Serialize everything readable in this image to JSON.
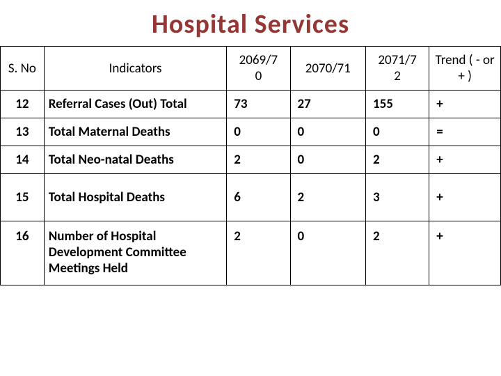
{
  "title": "Hospital Services",
  "table": {
    "columns": [
      "S. No",
      "Indicators",
      "2069/70",
      "2070/71",
      "2071/72",
      "Trend ( - or + )"
    ],
    "col_y1_lines": [
      "2069/7",
      "0"
    ],
    "col_y3_lines": [
      "2071/7",
      "2"
    ],
    "rows": [
      {
        "sno": "12",
        "indicator": "Referral Cases (Out) Total",
        "y1": "73",
        "y2": "27",
        "y3": "155",
        "trend": "+"
      },
      {
        "sno": "13",
        "indicator": "Total Maternal Deaths",
        "y1": "0",
        "y2": "0",
        "y3": "0",
        "trend": "="
      },
      {
        "sno": "14",
        "indicator": "Total Neo-natal Deaths",
        "y1": "2",
        "y2": "0",
        "y3": "2",
        "trend": "+"
      },
      {
        "sno": "15",
        "indicator": "Total Hospital Deaths",
        "y1": "6",
        "y2": "2",
        "y3": "3",
        "trend": "+"
      },
      {
        "sno": "16",
        "indicator": "Number  of Hospital Development Committee Meetings Held",
        "y1": "2",
        "y2": "0",
        "y3": "2",
        "trend": "+"
      }
    ]
  },
  "style": {
    "title_color": "#953735",
    "title_fontsize": 38,
    "border_color": "#000000",
    "cell_fontsize": 19,
    "background_color": "#ffffff"
  }
}
